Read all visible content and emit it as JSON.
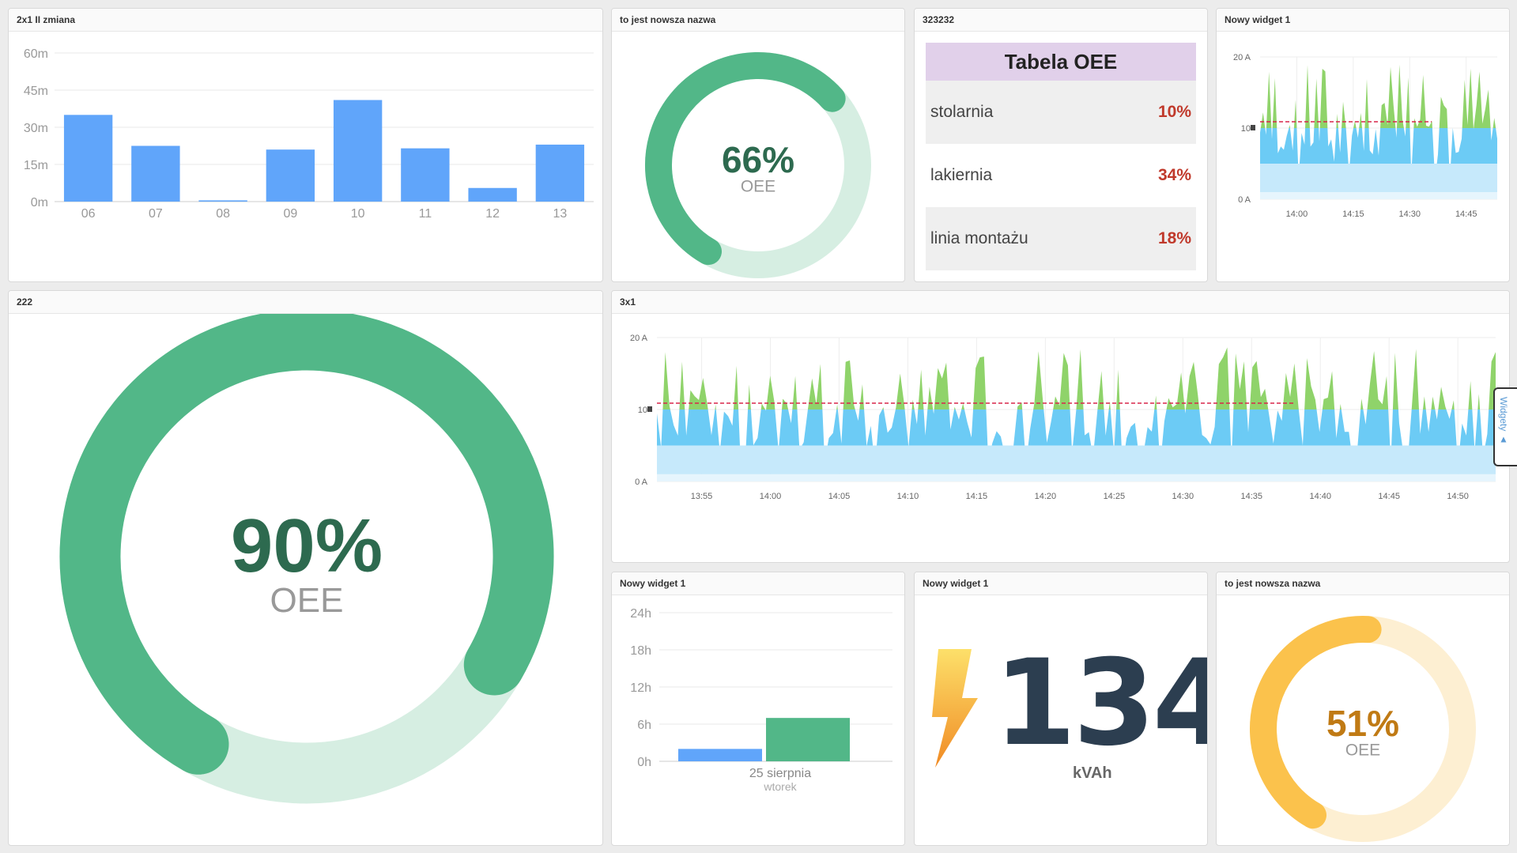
{
  "colors": {
    "bar_blue": "#60a5fa",
    "gauge_green": "#52b788",
    "gauge_green_light": "#d6eee2",
    "gauge_green_text": "#2d6a4f",
    "gauge_orange": "#fbc24c",
    "gauge_orange_light": "#fdefd2",
    "gauge_orange_text": "#c07a14",
    "area_green": "#8fd36a",
    "area_blue": "#6ccbf5",
    "area_lightblue": "#c6e9fb",
    "threshold_red": "#d9264a",
    "table_header": "#e1d0ea",
    "table_value": "#c0392b",
    "kvah_number": "#2c3e50"
  },
  "widgets": {
    "shift_bars": {
      "title": "2x1 II zmiana",
      "chart_data": {
        "type": "bar",
        "categories": [
          "06",
          "07",
          "08",
          "09",
          "10",
          "11",
          "12",
          "13"
        ],
        "values": [
          35,
          22.5,
          0.5,
          21,
          41,
          21.5,
          5.5,
          23
        ],
        "ylim": [
          0,
          60
        ],
        "yticks": [
          "0m",
          "15m",
          "30m",
          "45m",
          "60m"
        ],
        "grid": true
      }
    },
    "gauge_small_green": {
      "title": "to jest nowsza nazwa",
      "value": 66,
      "value_label": "66%",
      "sub_label": "OEE"
    },
    "oee_table": {
      "title": "323232",
      "header": "Tabela OEE",
      "rows": [
        {
          "name": "stolarnia",
          "value": "10%"
        },
        {
          "name": "lakiernia",
          "value": "34%"
        },
        {
          "name": "linia montażu",
          "value": "18%"
        }
      ]
    },
    "current_small": {
      "title": "Nowy widget 1",
      "chart_data": {
        "type": "area",
        "y_ticks": [
          "0 A",
          "10",
          "20 A"
        ],
        "x_ticks": [
          "14:00",
          "14:15",
          "14:30",
          "14:45"
        ],
        "ylim": [
          0,
          20
        ],
        "threshold": 10,
        "bands": [
          "0-5",
          "5-10",
          "10-20"
        ]
      }
    },
    "gauge_big": {
      "title": "222",
      "value": 90,
      "value_label": "90%",
      "sub_label": "OEE"
    },
    "current_wide": {
      "title": "3x1",
      "chart_data": {
        "type": "area",
        "y_ticks": [
          "0 A",
          "10",
          "20 A"
        ],
        "x_ticks": [
          "13:55",
          "14:00",
          "14:05",
          "14:10",
          "14:15",
          "14:20",
          "14:25",
          "14:30",
          "14:35",
          "14:40",
          "14:45",
          "14:50"
        ],
        "ylim": [
          0,
          20
        ],
        "threshold": 10,
        "bands": [
          "0-5",
          "5-10",
          "10-20"
        ]
      }
    },
    "hours_bars": {
      "title": "Nowy widget 1",
      "chart_data": {
        "type": "bar",
        "categories": [
          "25 sierpnia"
        ],
        "category_sub": "wtorek",
        "series": [
          {
            "values": [
              2
            ]
          },
          {
            "values": [
              7
            ]
          }
        ],
        "ylim": [
          0,
          24
        ],
        "yticks": [
          "0h",
          "6h",
          "12h",
          "18h",
          "24h"
        ],
        "grid": true
      }
    },
    "kvah": {
      "title": "Nowy widget 1",
      "value": "134",
      "unit": "kVAh",
      "icon": "lightning-bolt-icon"
    },
    "gauge_orange": {
      "title": "to jest nowsza nazwa",
      "value": 51,
      "value_label": "51%",
      "sub_label": "OEE"
    }
  },
  "side_tab": {
    "label": "Widgety ▲"
  }
}
